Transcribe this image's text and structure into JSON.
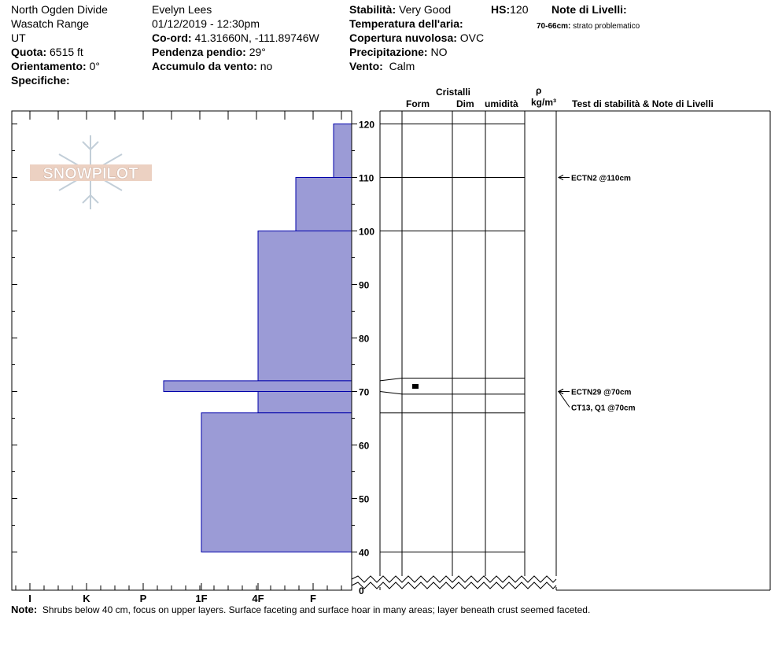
{
  "header": {
    "location": "North Ogden Divide",
    "range": "Wasatch Range",
    "state": "UT",
    "observer": "Evelyn Lees",
    "datetime": "01/12/2019 - 12:30pm",
    "quota_label": "Quota:",
    "quota_value": "6515 ft",
    "orientamento_label": "Orientamento:",
    "orientamento_value": "0°",
    "specifiche_label": "Specifiche:",
    "coord_label": "Co-ord:",
    "coord_value": "41.31660N, -111.89746W",
    "pendenza_label": "Pendenza pendio:",
    "pendenza_value": "29°",
    "accumulo_label": "Accumulo da vento:",
    "accumulo_value": "no",
    "stabilita_label": "Stabilità:",
    "stabilita_value": "Very Good",
    "hs_label": "HS:",
    "hs_value": "120",
    "temperatura_label": "Temperatura dell'aria:",
    "copertura_label": "Copertura nuvolosa:",
    "copertura_value": "OVC",
    "precipitazione_label": "Precipitazione:",
    "precipitazione_value": "NO",
    "vento_label": "Vento:",
    "vento_value": "Calm",
    "note_livelli_title": "Note di Livelli:",
    "note_livelli_range": "70-66cm:",
    "note_livelli_text": "strato problematico"
  },
  "columns": {
    "cristalli": "Cristalli",
    "form": "Form",
    "dim": "Dim",
    "umidita": "umidità",
    "rho": "ρ",
    "density_unit": "kg/m³",
    "tests": "Test di stabilità & Note di Livelli"
  },
  "logo_text": "SNOWPILOT",
  "note_label": "Note:",
  "note_text": "Shrubs below 40 cm, focus on upper layers.  Surface faceting and surface hoar in many areas; layer beneath crust seemed faceted.",
  "colors": {
    "hardness_fill": "#9b9bd6",
    "hardness_stroke": "#0000aa"
  },
  "chart_data": {
    "type": "bar",
    "orientation": "horizontal-step",
    "hardness_scale": [
      "I",
      "K",
      "P",
      "1F",
      "4F",
      "F"
    ],
    "y_ticks": [
      120,
      110,
      100,
      90,
      80,
      70,
      60,
      50,
      40,
      0
    ],
    "y_axis_break": [
      0,
      40
    ],
    "layers": [
      {
        "top": 120,
        "bottom": 110,
        "hardness": "F-"
      },
      {
        "top": 110,
        "bottom": 100,
        "hardness": "4F+"
      },
      {
        "top": 100,
        "bottom": 72,
        "hardness": "4F"
      },
      {
        "top": 72,
        "bottom": 70,
        "hardness": "P-"
      },
      {
        "top": 70,
        "bottom": 66,
        "hardness": "4F"
      },
      {
        "top": 66,
        "bottom": 40,
        "hardness": "1F"
      }
    ],
    "layer_boundaries": [
      120,
      110,
      100,
      72.5,
      69.5,
      66,
      40
    ],
    "tests": [
      {
        "label": "ECTN2 @110cm",
        "depth": 110
      },
      {
        "label": "ECTN29 @70cm",
        "depth": 70
      },
      {
        "label": "CT13, Q1 @70cm",
        "depth": 70
      }
    ]
  }
}
